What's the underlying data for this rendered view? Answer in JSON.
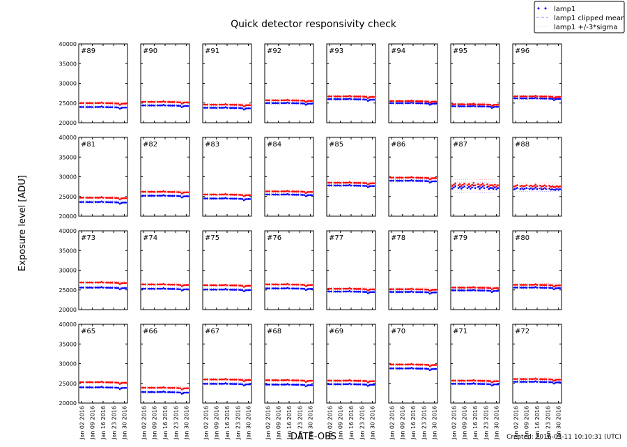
{
  "chart_data": {
    "type": "scatter",
    "title": "Quick detector responsivity check",
    "xlabel": "DATE-OBS",
    "ylabel": "Exposure level [ADU]",
    "footer": "Created: 2016-03-11 10:10:31 (UTC)",
    "ylim": [
      20000,
      40000
    ],
    "yticks": [
      20000,
      25000,
      30000,
      35000,
      40000
    ],
    "xlim": [
      "2015-12-31",
      "2016-02-01"
    ],
    "xticks": [
      "2016-01-02",
      "2016-01-09",
      "2016-01-16",
      "2016-01-23",
      "2016-01-30"
    ],
    "xtick_labels": [
      "Jan 02 2016",
      "Jan 09 2016",
      "Jan 16 2016",
      "Jan 23 2016",
      "Jan 30 2016"
    ],
    "grid": false,
    "legend": {
      "placement": "top-right",
      "entries": [
        "lamp1",
        "lamp1 clipped mean",
        "lamp1 +/-3*sigma"
      ]
    },
    "colors": {
      "lamp1": "#0000ff",
      "second": "#ff0000"
    },
    "dates": [
      "2016-01-01",
      "2016-01-02",
      "2016-01-03",
      "2016-01-05",
      "2016-01-06",
      "2016-01-07",
      "2016-01-08",
      "2016-01-09",
      "2016-01-11",
      "2016-01-12",
      "2016-01-13",
      "2016-01-14",
      "2016-01-15",
      "2016-01-16",
      "2016-01-18",
      "2016-01-19",
      "2016-01-20",
      "2016-01-21",
      "2016-01-22",
      "2016-01-24",
      "2016-01-25",
      "2016-01-26",
      "2016-01-27",
      "2016-01-28",
      "2016-01-29",
      "2016-01-30",
      "2016-01-31"
    ],
    "daily_deviation": [
      0,
      0,
      0,
      0,
      -20,
      0,
      0,
      -40,
      0,
      0,
      0,
      0,
      150,
      -30,
      -30,
      -30,
      -50,
      -50,
      -50,
      -80,
      -100,
      -150,
      -450,
      -250,
      -150,
      -150,
      -150
    ],
    "panels": [
      {
        "label": "#89",
        "lamp1": 24000,
        "second": 25000,
        "sigma": 100
      },
      {
        "label": "#90",
        "lamp1": 24400,
        "second": 25300,
        "sigma": 100
      },
      {
        "label": "#91",
        "lamp1": 23800,
        "second": 24600,
        "sigma": 100
      },
      {
        "label": "#92",
        "lamp1": 25000,
        "second": 25700,
        "sigma": 100
      },
      {
        "label": "#93",
        "lamp1": 26000,
        "second": 26700,
        "sigma": 100
      },
      {
        "label": "#94",
        "lamp1": 25000,
        "second": 25500,
        "sigma": 100
      },
      {
        "label": "#95",
        "lamp1": 24200,
        "second": 24700,
        "sigma": 100
      },
      {
        "label": "#96",
        "lamp1": 26200,
        "second": 26700,
        "sigma": 100
      },
      {
        "label": "#81",
        "lamp1": 23600,
        "second": 24700,
        "sigma": 100
      },
      {
        "label": "#82",
        "lamp1": 25200,
        "second": 26200,
        "sigma": 100
      },
      {
        "label": "#83",
        "lamp1": 24500,
        "second": 25500,
        "sigma": 100
      },
      {
        "label": "#84",
        "lamp1": 25500,
        "second": 26300,
        "sigma": 100
      },
      {
        "label": "#85",
        "lamp1": 27800,
        "second": 28500,
        "sigma": 100
      },
      {
        "label": "#86",
        "lamp1": 29000,
        "second": 29800,
        "sigma": 100
      },
      {
        "label": "#87",
        "lamp1": 27300,
        "second": 28000,
        "sigma": 450
      },
      {
        "label": "#88",
        "lamp1": 27000,
        "second": 27700,
        "sigma": 250
      },
      {
        "label": "#73",
        "lamp1": 25600,
        "second": 26900,
        "sigma": 100
      },
      {
        "label": "#74",
        "lamp1": 25300,
        "second": 26400,
        "sigma": 100
      },
      {
        "label": "#75",
        "lamp1": 25100,
        "second": 26200,
        "sigma": 100
      },
      {
        "label": "#76",
        "lamp1": 25400,
        "second": 26400,
        "sigma": 100
      },
      {
        "label": "#77",
        "lamp1": 24600,
        "second": 25300,
        "sigma": 100
      },
      {
        "label": "#78",
        "lamp1": 24500,
        "second": 25200,
        "sigma": 100
      },
      {
        "label": "#79",
        "lamp1": 24900,
        "second": 25600,
        "sigma": 100
      },
      {
        "label": "#80",
        "lamp1": 25600,
        "second": 26300,
        "sigma": 100
      },
      {
        "label": "#65",
        "lamp1": 24000,
        "second": 25300,
        "sigma": 100
      },
      {
        "label": "#66",
        "lamp1": 22800,
        "second": 23900,
        "sigma": 100
      },
      {
        "label": "#67",
        "lamp1": 24900,
        "second": 26000,
        "sigma": 100
      },
      {
        "label": "#68",
        "lamp1": 24700,
        "second": 25800,
        "sigma": 100
      },
      {
        "label": "#69",
        "lamp1": 24800,
        "second": 25700,
        "sigma": 100
      },
      {
        "label": "#70",
        "lamp1": 28800,
        "second": 29800,
        "sigma": 100
      },
      {
        "label": "#71",
        "lamp1": 24900,
        "second": 25700,
        "sigma": 100
      },
      {
        "label": "#72",
        "lamp1": 25400,
        "second": 26100,
        "sigma": 100
      }
    ]
  }
}
